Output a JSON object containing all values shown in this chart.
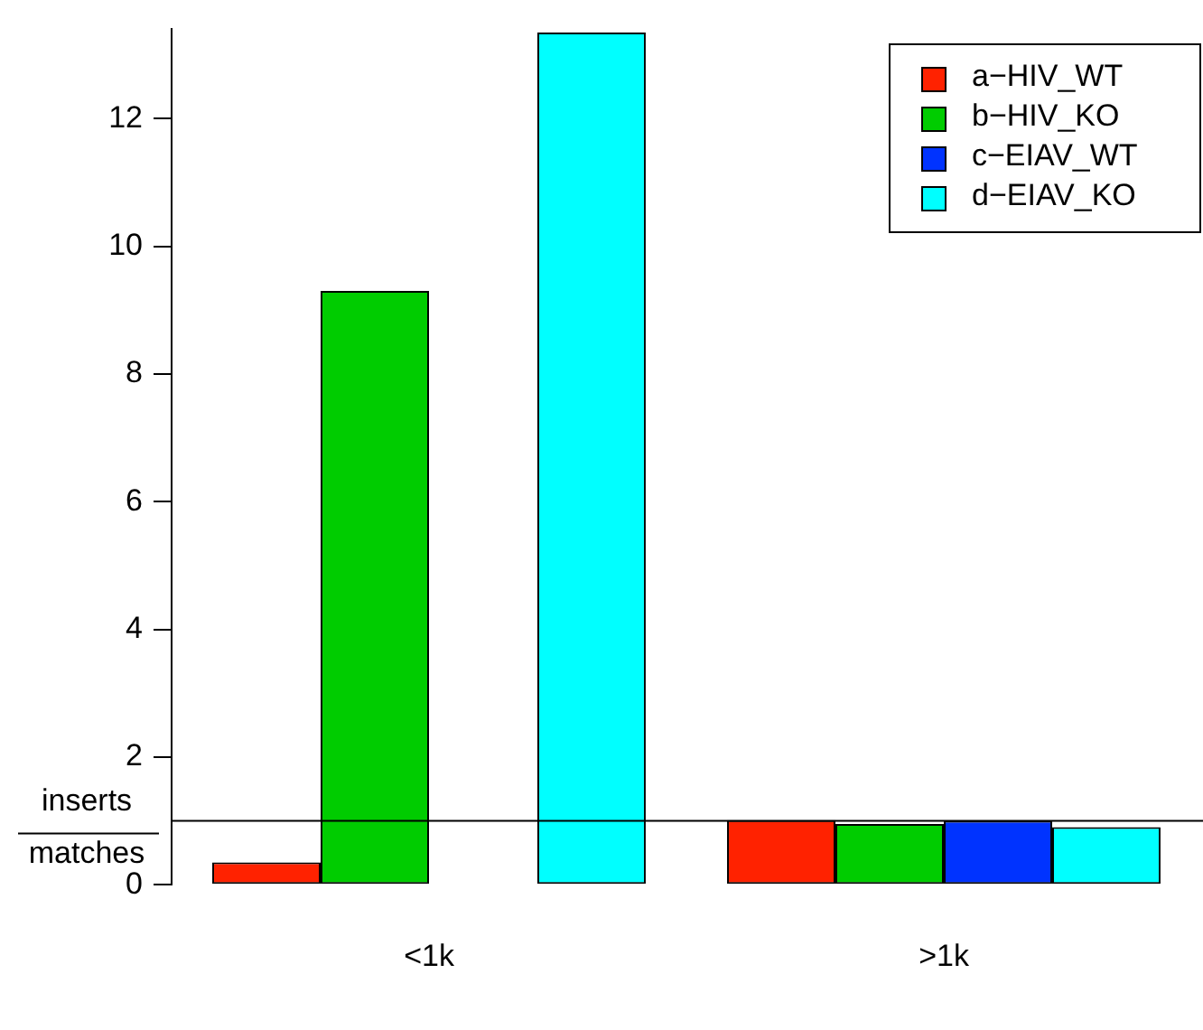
{
  "chart_data": {
    "type": "bar",
    "categories": [
      "<1k",
      ">1k"
    ],
    "series": [
      {
        "name": "a−HIV_WT",
        "color": "#ff2200",
        "values": [
          0.35,
          1.01
        ]
      },
      {
        "name": "b−HIV_KO",
        "color": "#00cc00",
        "values": [
          9.3,
          0.95
        ]
      },
      {
        "name": "c−EIAV_WT",
        "color": "#0033ff",
        "values": [
          0,
          1.0
        ]
      },
      {
        "name": "d−EIAV_KO",
        "color": "#00ffff",
        "values": [
          13.35,
          0.9
        ]
      }
    ],
    "ylim": [
      0,
      13.4
    ],
    "yticks": [
      0,
      2,
      4,
      6,
      8,
      10,
      12
    ],
    "grid": false,
    "legend": "top right",
    "ref_lines": [
      {
        "axis": "y",
        "value": 1,
        "label": "inserts\nmatches"
      }
    ]
  }
}
